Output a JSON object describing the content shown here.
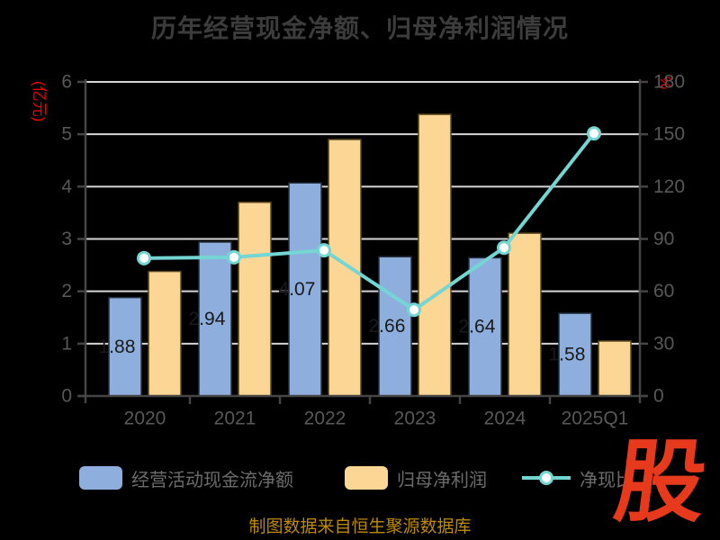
{
  "title": "历年经营现金净额、归母净利润情况",
  "chart_data": {
    "type": "bar",
    "categories": [
      "2020",
      "2021",
      "2022",
      "2023",
      "2024",
      "2025Q1"
    ],
    "series": [
      {
        "name": "经营活动现金流净额",
        "type": "bar",
        "axis": "left",
        "color": "#8eaedd",
        "edge_color": "#26303d",
        "values": [
          1.88,
          2.94,
          4.07,
          2.66,
          2.64,
          1.58
        ],
        "labels": [
          "1.88",
          "2.94",
          "4.07",
          "2.66",
          "2.64",
          "1.58"
        ]
      },
      {
        "name": "归母净利润",
        "type": "bar",
        "axis": "left",
        "color": "#fbd694",
        "edge_color": "#56451d",
        "values": [
          2.38,
          3.7,
          4.9,
          5.38,
          3.11,
          1.05
        ]
      },
      {
        "name": "净现比",
        "type": "line",
        "axis": "right",
        "color": "#74d6d3",
        "marker": "white-circle",
        "values": [
          79,
          79.5,
          83.5,
          49.4,
          85,
          150.5
        ]
      }
    ],
    "left_axis": {
      "unit": "(亿元)",
      "unit_color": "#f30000",
      "min": 0,
      "max": 6,
      "step": 1,
      "tick_labels": [
        "0",
        "1",
        "2",
        "3",
        "4",
        "5",
        "6"
      ]
    },
    "right_axis": {
      "unit": "%",
      "unit_color": "#f30000",
      "min": 0,
      "max": 180,
      "step": 30,
      "tick_labels": [
        "0",
        "30",
        "60",
        "90",
        "120",
        "150",
        "180"
      ]
    },
    "grid": true,
    "legend_position": "bottom",
    "background": "#000000",
    "label_color": "#1a1a1a",
    "axis_text_color": "#585858",
    "gridline_color": "#d6d6d6",
    "axis_line_color": "#454545"
  },
  "legend": {
    "items": [
      {
        "label": "经营活动现金流净额",
        "swatch": "blue-bar"
      },
      {
        "label": "归母净利润",
        "swatch": "orange-bar"
      },
      {
        "label": "净现比",
        "swatch": "teal-line-marker"
      }
    ]
  },
  "footer": {
    "source_note": "制图数据来自恒生聚源数据库"
  },
  "logo": {
    "text": "股",
    "color": "#e73a1d"
  }
}
